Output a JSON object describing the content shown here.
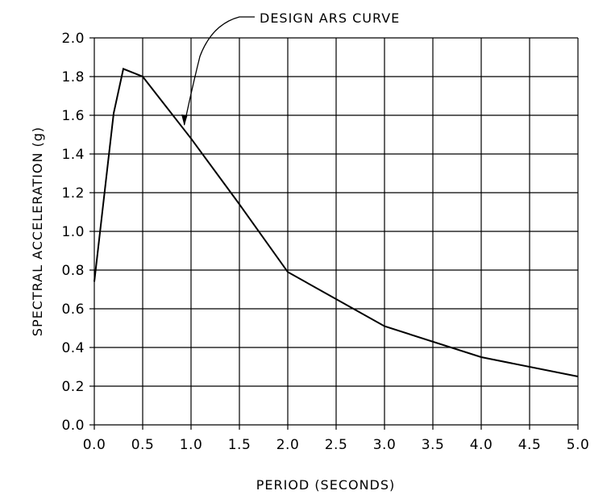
{
  "chart_data": {
    "type": "line",
    "title": "",
    "xlabel": "PERIOD (SECONDS)",
    "ylabel": "SPECTRAL ACCELERATION (g)",
    "xlim": [
      0,
      5
    ],
    "ylim": [
      0,
      2
    ],
    "grid": true,
    "x_ticks": [
      0,
      0.5,
      1.0,
      1.5,
      2.0,
      2.5,
      3.0,
      3.5,
      4.0,
      4.5,
      5.0
    ],
    "x_tick_labels": [
      "0.0",
      "0.5",
      "1.0",
      "1.5",
      "2.0",
      "2.5",
      "3.0",
      "3.5",
      "4.0",
      "4.5",
      "5.0"
    ],
    "y_ticks": [
      0,
      0.2,
      0.4,
      0.6,
      0.8,
      1.0,
      1.2,
      1.4,
      1.6,
      1.8,
      2.0
    ],
    "y_tick_labels": [
      "0.0",
      "0.2",
      "0.4",
      "0.6",
      "0.8",
      "1.0",
      "1.2",
      "1.4",
      "1.6",
      "1.8",
      "2.0"
    ],
    "series": [
      {
        "x": [
          0.0,
          0.2,
          0.3,
          0.5,
          1.0,
          1.5,
          2.0,
          3.0,
          4.0,
          5.0
        ],
        "y": [
          0.74,
          1.61,
          1.84,
          1.8,
          1.48,
          1.14,
          0.79,
          0.51,
          0.35,
          0.25
        ]
      }
    ],
    "annotations": [
      {
        "text": "DESIGN ARS CURVE",
        "points_to": {
          "x": 0.93,
          "y": 1.55
        }
      }
    ],
    "colors": {
      "line": "#000000",
      "grid": "#000000",
      "background": "#ffffff"
    }
  }
}
